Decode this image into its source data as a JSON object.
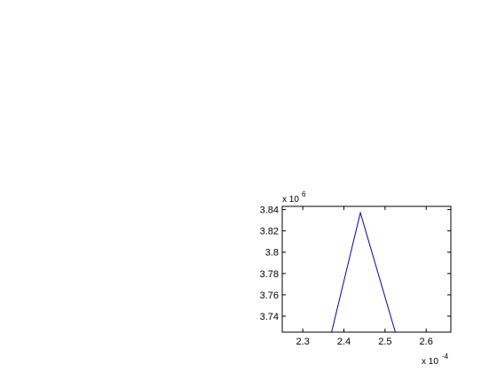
{
  "chart_data": {
    "type": "line",
    "title": "",
    "xlabel": "",
    "ylabel": "",
    "x_scale_base": "x 10",
    "x_scale_exp": "-4",
    "y_scale_base": "x 10",
    "y_scale_exp": "6",
    "xlim": [
      2.25,
      2.66
    ],
    "ylim": [
      3.725,
      3.843
    ],
    "x_ticks": [
      2.3,
      2.4,
      2.5,
      2.6
    ],
    "x_tick_labels": [
      "2.3",
      "2.4",
      "2.5",
      "2.6"
    ],
    "y_ticks": [
      3.74,
      3.76,
      3.78,
      3.8,
      3.82,
      3.84
    ],
    "y_tick_labels": [
      "3.74",
      "3.76",
      "3.78",
      "3.8",
      "3.82",
      "3.84"
    ],
    "grid": false,
    "series": [
      {
        "color": "#0000cc",
        "x": [
          2.37,
          2.44,
          2.525
        ],
        "y": [
          3.725,
          3.837,
          3.725
        ]
      }
    ]
  }
}
